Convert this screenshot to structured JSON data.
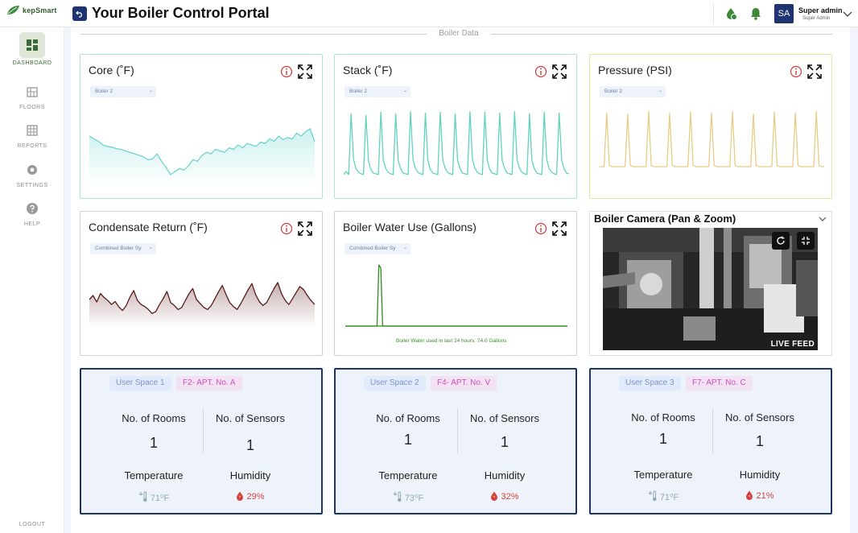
{
  "brand": {
    "name": "kepSmart"
  },
  "header": {
    "title": "Your Boiler Control Portal"
  },
  "user": {
    "initials": "SA",
    "name": "Super admin",
    "role": "Super Admin"
  },
  "sidebar": {
    "items": [
      {
        "label": "DASHBOARD",
        "icon": "dashboard-icon",
        "active": true
      },
      {
        "label": "FLOORS",
        "icon": "floors-icon"
      },
      {
        "label": "REPORTS",
        "icon": "reports-icon"
      },
      {
        "label": "SETTINGS",
        "icon": "settings-icon"
      },
      {
        "label": "HELP",
        "icon": "help-icon"
      }
    ],
    "logout": "LOGOUT"
  },
  "section": {
    "title": "Boiler Data"
  },
  "colors": {
    "core": "#6dd6cf",
    "stack": "#5fd3be",
    "pressure": "#e5cd86",
    "condensate": "#5a1a1a",
    "water": "#2f8a1f",
    "navy": "#1e3470"
  },
  "cards": [
    {
      "title": "Core (˚F)",
      "selector": "Boiler 2"
    },
    {
      "title": "Stack (˚F)",
      "selector": "Boiler 2"
    },
    {
      "title": "Pressure (PSI)",
      "selector": "Boiler 2"
    },
    {
      "title": "Condensate Return (˚F)",
      "selector": "Combined Boiler Sy"
    },
    {
      "title": "Boiler Water Use (Gallons)",
      "selector": "Combined Boiler Sy",
      "note": "Boiler Water used in last 24 hours: 74.0 Gallons"
    }
  ],
  "camera": {
    "title": "Boiler Camera (Pan & Zoom)",
    "badge": "LIVE FEED"
  },
  "spaces": [
    {
      "space": "User Space 1",
      "apt": "F2- APT. No. A",
      "rooms_label": "No. of Rooms",
      "rooms": "1",
      "sensors_label": "No. of Sensors",
      "sensors": "1",
      "temp_label": "Temperature",
      "temp": "71⁰F",
      "hum_label": "Humidity",
      "humidity": "29%"
    },
    {
      "space": "User Space 2",
      "apt": "F4- APT. No. V",
      "rooms_label": "No. of Rooms",
      "rooms": "1",
      "sensors_label": "No. of Sensors",
      "sensors": "1",
      "temp_label": "Temperature",
      "temp": "73⁰F",
      "hum_label": "Humidity",
      "humidity": "32%"
    },
    {
      "space": "User Space 3",
      "apt": "F7- APT. No. C",
      "rooms_label": "No. of Rooms",
      "rooms": "1",
      "sensors_label": "No. of Sensors",
      "sensors": "1",
      "temp_label": "Temperature",
      "temp": "71⁰F",
      "hum_label": "Humidity",
      "humidity": "21%"
    }
  ],
  "chart_data": [
    {
      "type": "area",
      "series": [
        {
          "values": [
            62,
            58,
            55,
            50,
            48,
            47,
            45,
            44,
            42,
            40,
            38,
            36,
            34,
            30,
            31,
            38,
            28,
            20,
            10,
            14,
            18,
            16,
            22,
            30,
            28,
            36,
            40,
            38,
            44,
            42,
            40,
            46,
            44,
            50,
            46,
            52,
            50,
            48,
            54,
            52,
            58,
            55,
            62,
            57,
            60,
            58,
            66,
            62,
            68,
            72,
            54
          ]
        }
      ]
    },
    {
      "type": "line",
      "series": [
        {
          "values": [
            10,
            14,
            10,
            92,
            30,
            18,
            13,
            11,
            10,
            90,
            28,
            17,
            12,
            11,
            10,
            94,
            30,
            18,
            13,
            11,
            10,
            92,
            29,
            18,
            12,
            11,
            10,
            95,
            30,
            18,
            13,
            11,
            10,
            93,
            29,
            17,
            12,
            11,
            10,
            94,
            30,
            18,
            13,
            11,
            10,
            92,
            29,
            18,
            12,
            11,
            10,
            95,
            30,
            18,
            13,
            11,
            10,
            94,
            29,
            17,
            12,
            11,
            10,
            93,
            29,
            18,
            12,
            11,
            10,
            95,
            30,
            18,
            13,
            11,
            10,
            92,
            29,
            18,
            12,
            11,
            10,
            94,
            30,
            18,
            13,
            11,
            10,
            93,
            30,
            18,
            12,
            11
          ]
        }
      ]
    },
    {
      "type": "line",
      "series": [
        {
          "values": [
            4,
            4,
            4,
            92,
            6,
            4,
            4,
            4,
            4,
            4,
            4,
            90,
            6,
            4,
            4,
            4,
            4,
            4,
            4,
            94,
            6,
            4,
            4,
            4,
            4,
            4,
            4,
            91,
            6,
            4,
            4,
            4,
            4,
            4,
            4,
            93,
            6,
            4,
            4,
            4,
            4,
            4,
            4,
            92,
            6,
            4,
            4,
            4,
            4,
            4,
            4,
            94,
            6,
            4,
            4,
            4,
            4,
            4,
            4,
            90,
            6,
            4,
            4,
            4,
            4,
            4,
            4,
            93,
            6,
            4,
            4,
            4,
            4,
            4,
            4,
            92,
            6,
            4,
            4,
            4,
            4,
            4,
            4,
            94,
            6,
            4,
            4
          ]
        }
      ]
    },
    {
      "type": "area",
      "series": [
        {
          "values": [
            50,
            58,
            45,
            62,
            54,
            48,
            40,
            46,
            35,
            28,
            38,
            55,
            68,
            48,
            40,
            36,
            30,
            22,
            26,
            40,
            52,
            66,
            44,
            38,
            30,
            34,
            48,
            62,
            72,
            50,
            42,
            34,
            30,
            38,
            52,
            66,
            78,
            60,
            44,
            36,
            30,
            42,
            56,
            70,
            82,
            60,
            46,
            38,
            44,
            58,
            72,
            84,
            62,
            48,
            40,
            52,
            64,
            76,
            70,
            58,
            48,
            40
          ]
        }
      ]
    },
    {
      "type": "line",
      "series": [
        {
          "values": [
            0,
            0,
            0,
            0,
            0,
            0,
            0,
            0,
            0,
            0,
            0,
            0,
            0,
            0,
            0,
            0,
            0,
            0,
            100,
            95,
            0,
            0,
            0,
            0,
            0,
            0,
            0,
            0,
            0,
            0,
            0,
            0,
            0,
            0,
            0,
            0,
            0,
            0,
            0,
            0,
            0,
            0,
            0,
            0,
            0,
            0,
            0,
            0,
            0,
            0,
            0,
            0,
            0,
            0,
            0,
            0,
            0,
            0,
            0,
            0,
            0,
            0,
            0,
            0,
            0,
            0,
            0,
            0,
            0,
            0,
            0,
            0,
            0,
            0,
            0,
            0,
            0,
            0,
            0,
            0,
            0,
            0,
            0,
            0,
            0,
            0,
            0,
            0,
            0,
            0,
            0,
            0,
            0,
            0,
            0,
            0,
            0,
            0,
            0,
            0,
            0,
            0,
            0,
            0,
            0,
            0,
            0,
            0,
            0,
            0,
            0,
            0,
            0,
            0,
            0,
            0,
            0,
            0,
            0,
            0
          ]
        }
      ]
    }
  ]
}
